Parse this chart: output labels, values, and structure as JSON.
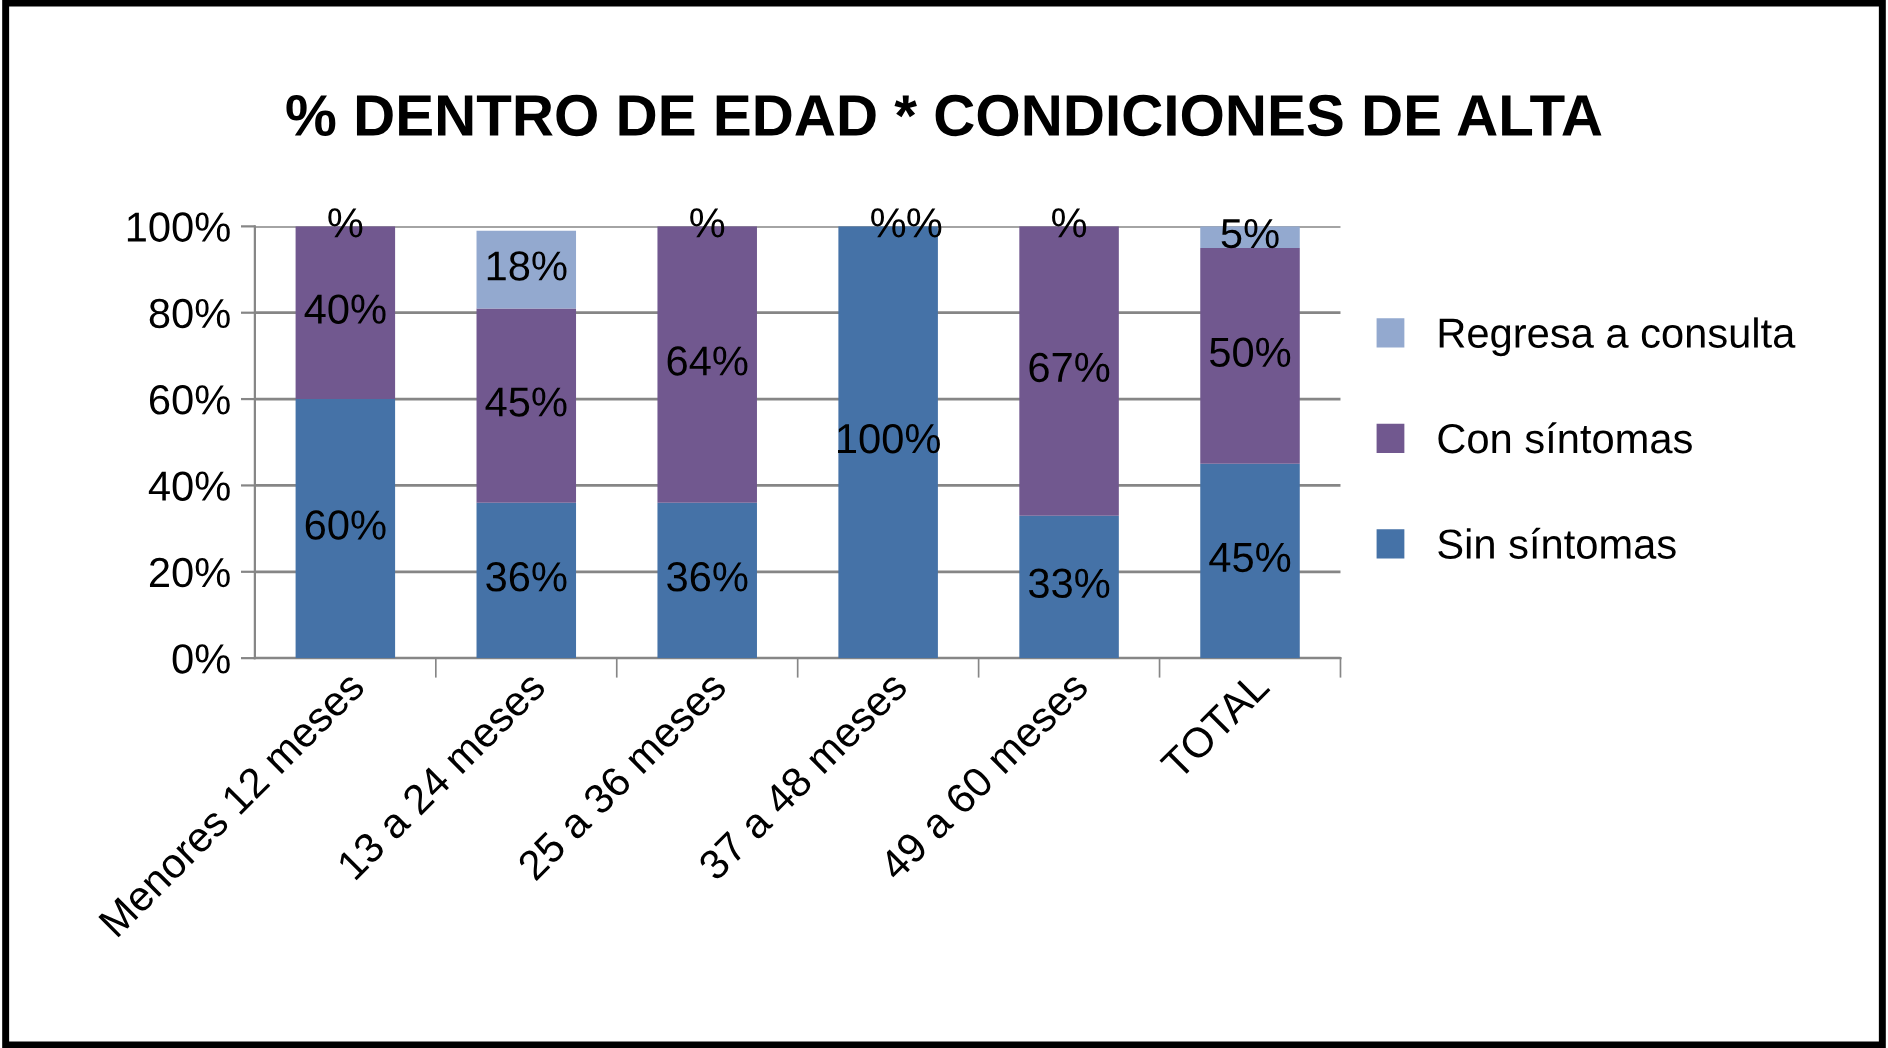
{
  "chart_data": {
    "type": "bar",
    "stacked": true,
    "title": "% DENTRO DE EDAD * CONDICIONES DE ALTA",
    "categories": [
      "Menores 12 meses",
      "13 a 24 meses",
      "25 a 36 meses",
      "37 a 48 meses",
      "49 a 60 meses",
      "TOTAL"
    ],
    "series": [
      {
        "name": "Sin síntomas",
        "color": "#4572a7",
        "values": [
          60,
          36,
          36,
          100,
          33,
          45
        ],
        "value_labels": [
          "60%",
          "36%",
          "36%",
          "100%",
          "33%",
          "45%"
        ]
      },
      {
        "name": "Con síntomas",
        "color": "#71588f",
        "values": [
          40,
          45,
          64,
          0,
          67,
          50
        ],
        "value_labels": [
          "40%",
          "45%",
          "64%",
          "%",
          "67%",
          "50%"
        ]
      },
      {
        "name": "Regresa a consulta",
        "color": "#93a9cf",
        "values": [
          0,
          18,
          0,
          0,
          0,
          5
        ],
        "value_labels": [
          "%",
          "18%",
          "%",
          "%",
          "%",
          "5%"
        ]
      }
    ],
    "ylim": [
      0,
      100
    ],
    "yticks": [
      {
        "value": 0,
        "label": "0%"
      },
      {
        "value": 20,
        "label": "20%"
      },
      {
        "value": 40,
        "label": "40%"
      },
      {
        "value": 60,
        "label": "60%"
      },
      {
        "value": 80,
        "label": "80%"
      },
      {
        "value": 100,
        "label": "100%"
      }
    ],
    "grid": "y",
    "legend": "right"
  }
}
